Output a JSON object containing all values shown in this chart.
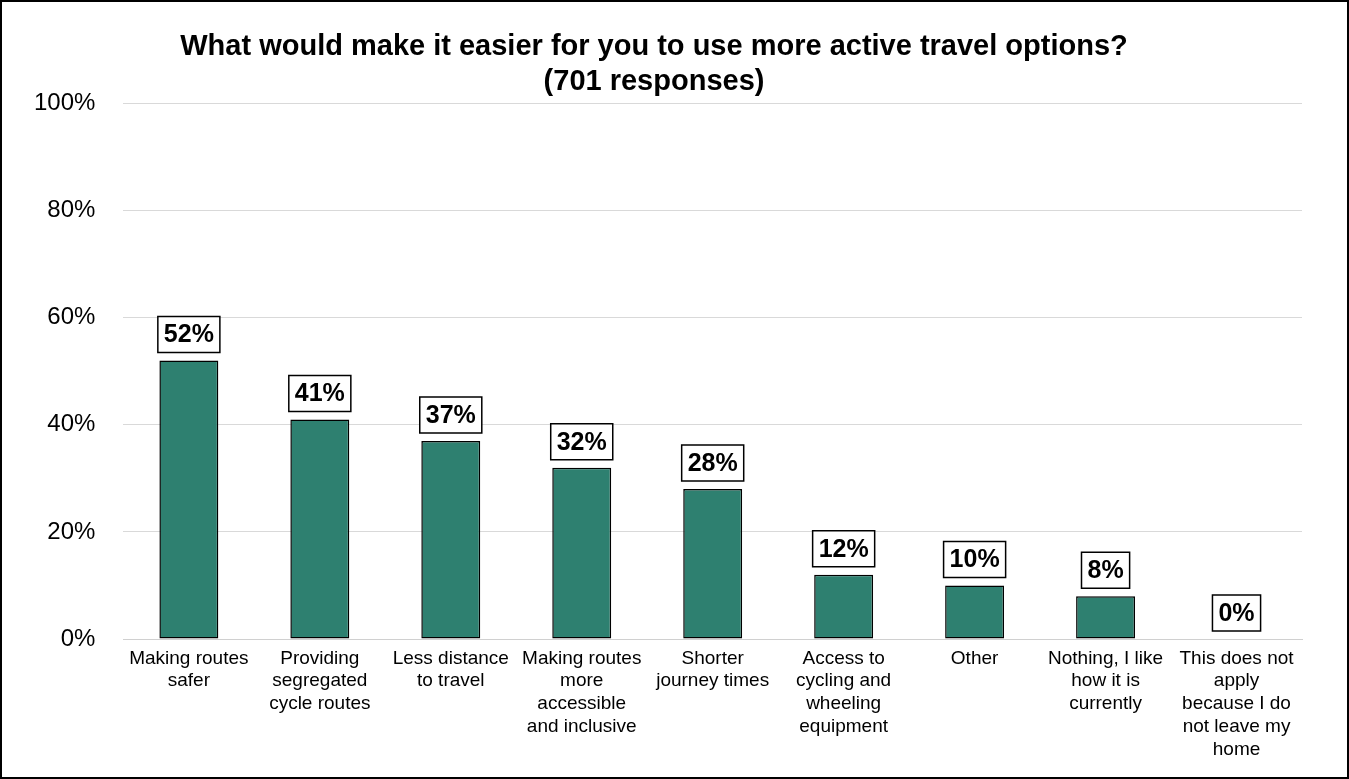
{
  "chart_data": {
    "type": "bar",
    "title": "What would make it easier for you to use more active travel options? (701 responses)",
    "categories": [
      "Making routes safer",
      "Providing segregated cycle routes",
      "Less distance to travel",
      "Making routes more accessible and inclusive",
      "Shorter journey times",
      "Access to cycling and wheeling equipment",
      "Other",
      "Nothing, I like how it is currently",
      "This does not apply because I do not leave my home"
    ],
    "values": [
      52,
      41,
      37,
      32,
      28,
      12,
      10,
      8,
      0
    ],
    "value_labels": [
      "52%",
      "41%",
      "37%",
      "32%",
      "28%",
      "12%",
      "10%",
      "8%",
      "0%"
    ],
    "color": "#2e8070",
    "ylim": [
      0,
      100
    ],
    "yticks": [
      {
        "value": 0,
        "label": "0%"
      },
      {
        "value": 20,
        "label": "20%"
      },
      {
        "value": 40,
        "label": "40%"
      },
      {
        "value": 60,
        "label": "60%"
      },
      {
        "value": 80,
        "label": "80%"
      },
      {
        "value": 100,
        "label": "100%"
      }
    ],
    "grid": "y",
    "legend": false
  }
}
